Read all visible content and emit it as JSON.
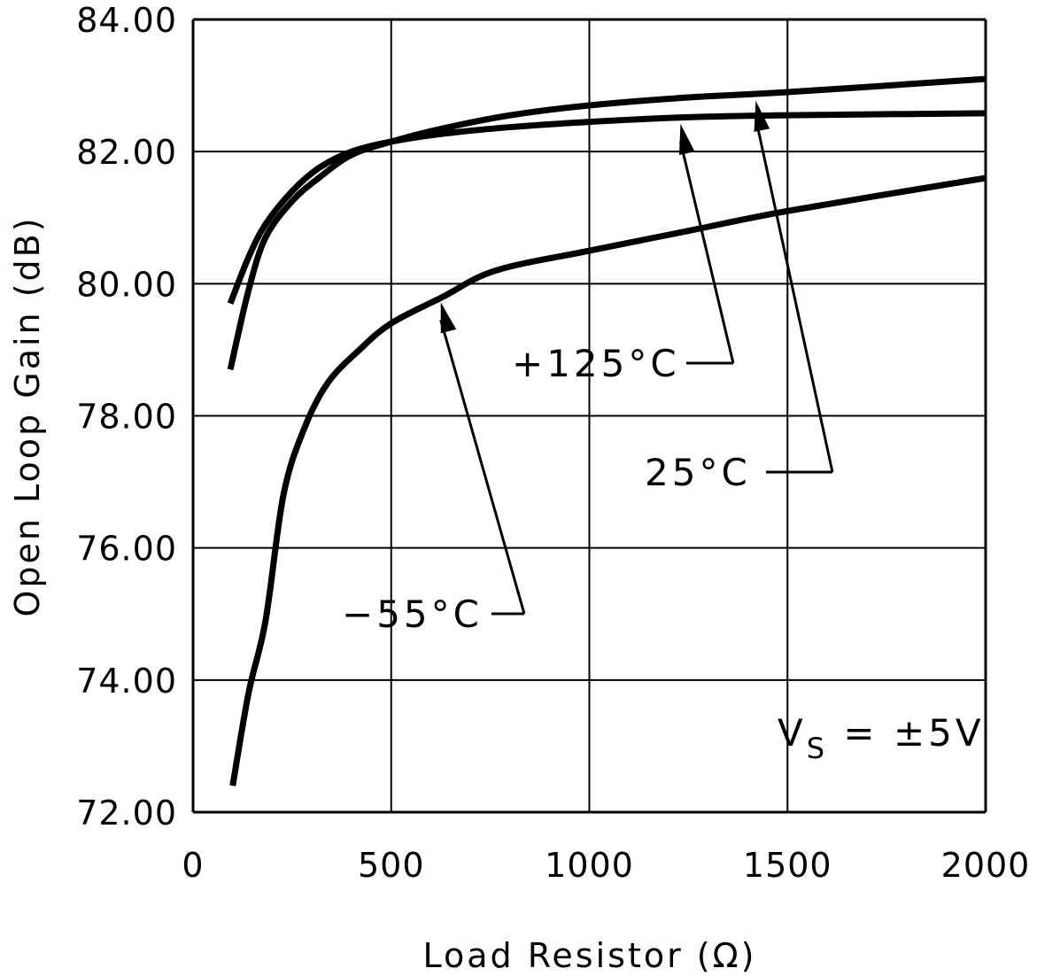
{
  "chart_data": {
    "type": "line",
    "title": "",
    "xlabel": "Load Resistor (Ω)",
    "ylabel": "Open Loop Gain (dB)",
    "xlim": [
      0,
      2000
    ],
    "ylim": [
      72,
      84
    ],
    "grid": true,
    "xticks": [
      "0",
      "500",
      "1000",
      "1500",
      "2000"
    ],
    "xtick_values": [
      0,
      500,
      1000,
      1500,
      2000
    ],
    "yticks": [
      "72.00",
      "74.00",
      "76.00",
      "78.00",
      "80.00",
      "82.00",
      "84.00"
    ],
    "ytick_values": [
      72,
      74,
      76,
      78,
      80,
      82,
      84
    ],
    "condition": {
      "main": "V",
      "sub": "S",
      "rest": " = ±5V"
    },
    "series": [
      {
        "name": "+125°C",
        "x": [
          94,
          140,
          183,
          250,
          317,
          400,
          500,
          630,
          800,
          1000,
          1250,
          1500,
          2000
        ],
        "y": [
          79.7,
          80.4,
          80.9,
          81.4,
          81.75,
          82.0,
          82.15,
          82.27,
          82.37,
          82.45,
          82.52,
          82.55,
          82.58
        ]
      },
      {
        "name": "25°C",
        "x": [
          94,
          140,
          183,
          250,
          317,
          400,
          500,
          630,
          800,
          1000,
          1250,
          1500,
          2000
        ],
        "y": [
          78.7,
          79.9,
          80.7,
          81.25,
          81.6,
          81.95,
          82.15,
          82.35,
          82.55,
          82.7,
          82.82,
          82.9,
          83.1
        ]
      },
      {
        "name": "-55°C",
        "x": [
          100,
          140,
          183,
          228,
          280,
          340,
          420,
          500,
          630,
          764,
          1000,
          1250,
          1500,
          2000
        ],
        "y": [
          72.4,
          73.8,
          74.9,
          76.8,
          77.8,
          78.5,
          79.0,
          79.4,
          79.8,
          80.2,
          80.5,
          80.8,
          81.1,
          81.6
        ]
      }
    ],
    "annotations": [
      {
        "text": "+125°C",
        "series": "+125°C",
        "target": [
          1230,
          82.5
        ]
      },
      {
        "text": "25°C",
        "series": "25°C",
        "target": [
          1420,
          82.85
        ]
      },
      {
        "text": "−55°C",
        "series": "-55°C",
        "target": [
          625,
          79.8
        ]
      }
    ]
  }
}
